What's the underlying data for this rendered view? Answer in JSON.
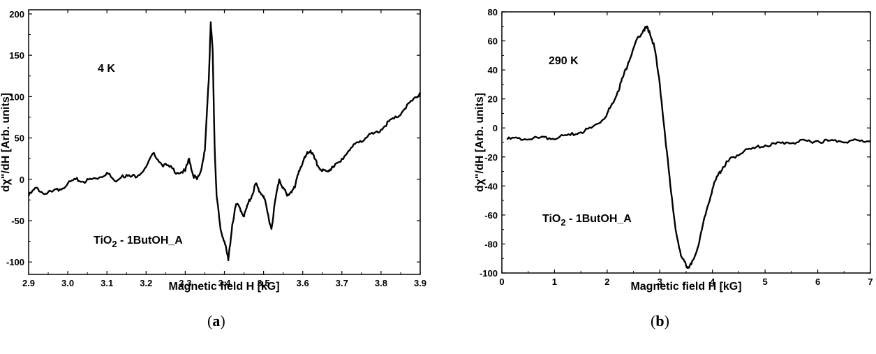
{
  "chart_data": [
    {
      "type": "line",
      "panel_label": "a",
      "xlabel": "Magnetic field H [kG]",
      "ylabel": "dχ\"/dH [Arb. units]",
      "xlim": [
        2.9,
        3.9
      ],
      "ylim": [
        -115,
        205
      ],
      "xticks": [
        2.9,
        3.0,
        3.1,
        3.2,
        3.3,
        3.4,
        3.5,
        3.6,
        3.7,
        3.8,
        3.9
      ],
      "xtick_labels": [
        "2.9",
        "3.0",
        "3.1",
        "3.2",
        "3.3",
        "3.4",
        "3.5",
        "3.6",
        "3.7",
        "3.8",
        "3.9"
      ],
      "yticks": [
        -100,
        -50,
        0,
        50,
        100,
        150,
        200
      ],
      "ytick_labels": [
        "-100",
        "-50",
        "0",
        "50",
        "100",
        "150",
        "200"
      ],
      "annotations": {
        "temperature": "4 K",
        "sample_main": "TiO",
        "sample_sub": "2",
        "sample_rest": " - 1ButOH_A"
      },
      "series": [
        {
          "color": "#000000",
          "x": [
            2.9,
            2.92,
            2.94,
            2.96,
            2.98,
            3.0,
            3.02,
            3.04,
            3.06,
            3.08,
            3.1,
            3.12,
            3.14,
            3.16,
            3.18,
            3.2,
            3.22,
            3.24,
            3.26,
            3.28,
            3.3,
            3.31,
            3.32,
            3.33,
            3.34,
            3.35,
            3.36,
            3.365,
            3.37,
            3.375,
            3.38,
            3.39,
            3.4,
            3.41,
            3.42,
            3.43,
            3.44,
            3.45,
            3.46,
            3.47,
            3.48,
            3.49,
            3.5,
            3.51,
            3.52,
            3.53,
            3.54,
            3.55,
            3.56,
            3.57,
            3.58,
            3.59,
            3.6,
            3.61,
            3.62,
            3.63,
            3.64,
            3.65,
            3.66,
            3.67,
            3.68,
            3.7,
            3.72,
            3.74,
            3.76,
            3.78,
            3.8,
            3.82,
            3.84,
            3.86,
            3.88,
            3.9
          ],
          "y": [
            -20,
            -10,
            -18,
            -15,
            -12,
            -5,
            0,
            -3,
            0,
            2,
            8,
            -2,
            5,
            3,
            5,
            15,
            32,
            18,
            15,
            8,
            10,
            25,
            5,
            0,
            10,
            35,
            120,
            190,
            155,
            40,
            -20,
            -60,
            -75,
            -98,
            -55,
            -30,
            -35,
            -45,
            -30,
            -20,
            -5,
            -15,
            -20,
            -40,
            -60,
            -25,
            0,
            -10,
            -20,
            -15,
            -10,
            10,
            20,
            30,
            35,
            25,
            15,
            10,
            10,
            12,
            15,
            25,
            35,
            45,
            50,
            55,
            60,
            70,
            75,
            85,
            95,
            105
          ]
        }
      ]
    },
    {
      "type": "line",
      "panel_label": "b",
      "xlabel": "Magnetic field H [kG]",
      "ylabel": "dχ\"/dH [Arb. units]",
      "xlim": [
        0,
        7
      ],
      "ylim": [
        -100,
        80
      ],
      "xticks": [
        0,
        1,
        2,
        3,
        4,
        5,
        6,
        7
      ],
      "xtick_labels": [
        "0",
        "1",
        "2",
        "3",
        "4",
        "5",
        "6",
        "7"
      ],
      "yticks": [
        -100,
        -80,
        -60,
        -40,
        -20,
        0,
        20,
        40,
        60,
        80
      ],
      "ytick_labels": [
        "-100",
        "-80",
        "-60",
        "-40",
        "-20",
        "0",
        "20",
        "40",
        "60",
        "80"
      ],
      "annotations": {
        "temperature": "290 K",
        "sample_main": "TiO",
        "sample_sub": "2",
        "sample_rest": " - 1ButOH_A"
      },
      "series": [
        {
          "color": "#000000",
          "x": [
            0.1,
            0.3,
            0.5,
            0.7,
            0.9,
            1.1,
            1.3,
            1.5,
            1.7,
            1.9,
            2.0,
            2.1,
            2.2,
            2.3,
            2.4,
            2.5,
            2.6,
            2.7,
            2.75,
            2.8,
            2.9,
            3.0,
            3.1,
            3.2,
            3.3,
            3.4,
            3.5,
            3.55,
            3.6,
            3.7,
            3.8,
            3.9,
            4.0,
            4.1,
            4.2,
            4.3,
            4.4,
            4.6,
            4.8,
            5.0,
            5.2,
            5.4,
            5.6,
            5.8,
            6.0,
            6.2,
            6.4,
            6.6,
            6.8,
            7.0
          ],
          "y": [
            -8,
            -7,
            -8,
            -7,
            -7,
            -6,
            -5,
            -3,
            0,
            5,
            10,
            17,
            25,
            35,
            45,
            55,
            63,
            68,
            69,
            67,
            55,
            30,
            -5,
            -40,
            -70,
            -88,
            -95,
            -96,
            -94,
            -85,
            -70,
            -55,
            -42,
            -33,
            -27,
            -23,
            -20,
            -16,
            -14,
            -12,
            -11,
            -10,
            -10,
            -9,
            -9,
            -9,
            -9,
            -9,
            -9,
            -9
          ]
        }
      ]
    }
  ],
  "captions": {
    "a": "a",
    "b": "b"
  }
}
